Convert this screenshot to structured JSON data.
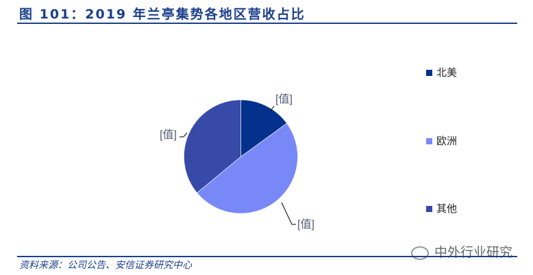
{
  "title": "图 101：2019 年兰亭集势各地区营收占比",
  "source": "资料来源：公司公告、安信证券研究中心",
  "watermark": "中外行业研究",
  "chart_data": {
    "type": "pie",
    "title": "",
    "start_angle_deg": 0,
    "direction": "clockwise",
    "slices": [
      {
        "name": "北美",
        "value": 15,
        "color": "#04318b",
        "label": "[值]"
      },
      {
        "name": "欧洲",
        "value": 49,
        "color": "#7889f7",
        "label": "[值]"
      },
      {
        "name": "其他",
        "value": 36,
        "color": "#374aa8",
        "label": "[值]"
      }
    ],
    "legend_placement": "right"
  }
}
